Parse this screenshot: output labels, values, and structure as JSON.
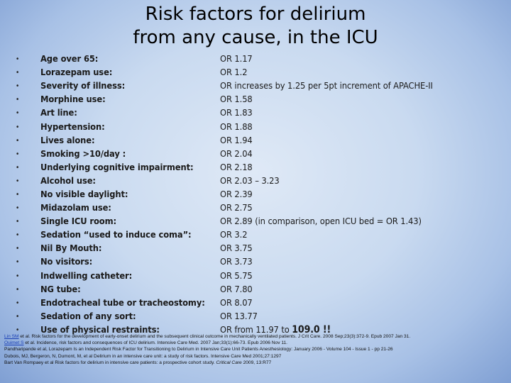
{
  "title": {
    "line1": "Risk factors for delirium",
    "line2": "from any cause, in the ICU"
  },
  "bullet_glyph": "•",
  "items": [
    {
      "factor": "Age over 65:",
      "or": "OR 1.17"
    },
    {
      "factor": "Lorazepam use:",
      "or": "OR 1.2"
    },
    {
      "factor": "Severity of illness:",
      "or": "OR increases by 1.25 per 5pt increment of APACHE-II"
    },
    {
      "factor": "Morphine use:",
      "or": "OR 1.58"
    },
    {
      "factor": "Art line:",
      "or": "OR 1.83"
    },
    {
      "factor": "Hypertension:",
      "or": "OR 1.88"
    },
    {
      "factor": "Lives alone:",
      "or": "OR 1.94"
    },
    {
      "factor": "Smoking >10/day :",
      "or": "OR 2.04"
    },
    {
      "factor": "Underlying cognitive impairment:",
      "or": "OR 2.18"
    },
    {
      "factor": "Alcohol use:",
      "or": "OR 2.03 – 3.23"
    },
    {
      "factor": "No visible daylight:",
      "or": "OR 2.39"
    },
    {
      "factor": "Midazolam use:",
      "or": "OR 2.75"
    },
    {
      "factor": "Single ICU room:",
      "or": "OR 2.89 (in comparison, open ICU bed = OR 1.43)"
    },
    {
      "factor": "Sedation “used to induce coma”:",
      "or": "OR 3.2"
    },
    {
      "factor": "Nil By Mouth:",
      "or": "OR 3.75"
    },
    {
      "factor": "No visitors:",
      "or": "OR 3.73"
    },
    {
      "factor": "Indwelling catheter:",
      "or": "OR 5.75"
    },
    {
      "factor": "NG tube:",
      "or": "OR 7.80"
    },
    {
      "factor": "Endotracheal tube or tracheostomy:",
      "or": "OR 8.07"
    },
    {
      "factor": "Sedation of any sort:",
      "or": "OR 13.77"
    },
    {
      "factor": "Use of physical restraints:",
      "or": "OR from 11.97 to ",
      "or_strong": "109.0 !!"
    }
  ],
  "references": {
    "r1_link": "Lin SM",
    "r1_text": " et al. Risk factors for the development of early-onset delirium and the subsequent clinical outcome in mechanically ventilated patients. J Crit Care. 2008 Sep;23(3):372-9. Epub 2007 Jan 31.",
    "r2_link": "Ouimet S",
    "r2_text": " et al. Incidence, risk factors and consequences of ICU delirium. Intensive Care Med. 2007 Jan;33(1):66-73. Epub 2006 Nov 11.",
    "r3": "Pandharipande et al, Lorazepam Is an Independent Risk Factor for Transitioning to Delirium in Intensive Care Unit Patients Anesthesiology: January 2006 - Volume 104 - Issue 1 - pp 21-26",
    "r4_text": "Dubois, MJ, Bergeron, N, Dumont, M, et al Delirium in an intensive care unit: a study of risk factors.  Intensive Care Med ",
    "r4_tail": "2001;27:1297",
    "r5_text": "Bart Van Rompaey et al Risk factors for delirium in intensive care patients: a prospective cohort study.  ",
    "r5_journal": "Critical Care",
    "r5_tail": " 2009, 13:R77"
  }
}
